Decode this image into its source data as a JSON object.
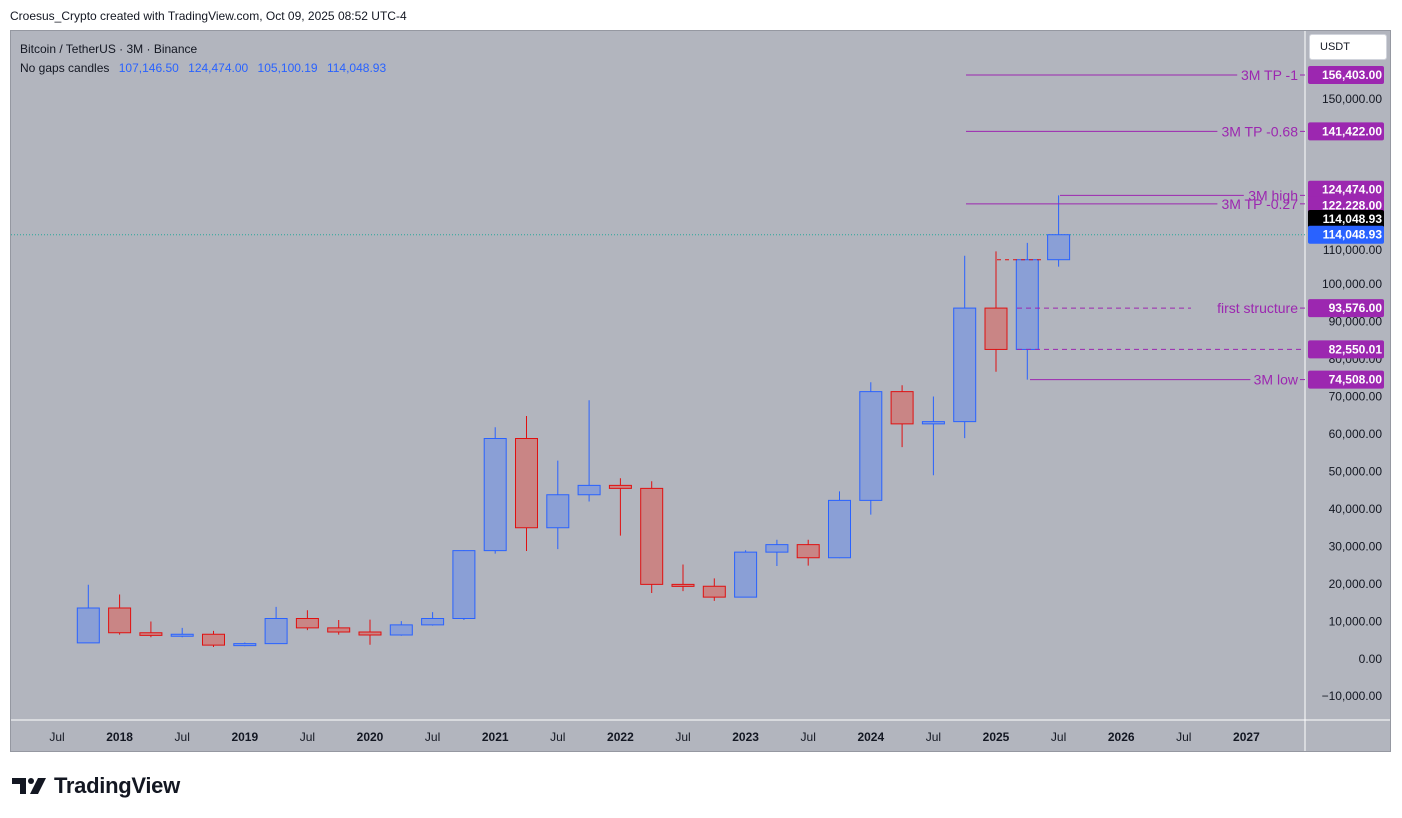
{
  "header": {
    "attribution": "Croesus_Crypto created with TradingView.com, Oct 09, 2025 08:52 UTC-4"
  },
  "legend": {
    "symbol_line": "Bitcoin / TetherUS · 3M · Binance",
    "mode": "No gaps candles",
    "open": "107,146.50",
    "high": "124,474.00",
    "low": "105,100.19",
    "close": "114,048.93"
  },
  "currency_button": "USDT",
  "brand": {
    "name": "TradingView"
  },
  "colors": {
    "up_fill": "#8a9fd6",
    "up_border": "#2962ff",
    "down_fill": "#c98585",
    "down_border": "#e01010",
    "level_line": "#9c27b0",
    "level_label_bg": "#9c27b0",
    "price_label_bg": "#2962ff",
    "pane_bg": "#b2b5be"
  },
  "chart_data": {
    "type": "candlestick",
    "title": "Bitcoin / TetherUS · 3M · Binance",
    "timeframe": "3M",
    "y_ticks": [
      -10000,
      0,
      10000,
      20000,
      30000,
      40000,
      50000,
      60000,
      70000,
      80000,
      90000,
      100000,
      110000,
      150000
    ],
    "y_tick_labels": [
      "−10,000.00",
      "0.00",
      "10,000.00",
      "20,000.00",
      "30,000.00",
      "40,000.00",
      "50,000.00",
      "60,000.00",
      "70,000.00",
      "80,000.00",
      "90,000.00",
      "100,000.00",
      "110,000.00",
      "150,000.00"
    ],
    "x_labels": [
      {
        "label": "Jul",
        "bold": false,
        "slot": 0
      },
      {
        "label": "2018",
        "bold": true,
        "slot": 2
      },
      {
        "label": "Jul",
        "bold": false,
        "slot": 4
      },
      {
        "label": "2019",
        "bold": true,
        "slot": 6
      },
      {
        "label": "Jul",
        "bold": false,
        "slot": 8
      },
      {
        "label": "2020",
        "bold": true,
        "slot": 10
      },
      {
        "label": "Jul",
        "bold": false,
        "slot": 12
      },
      {
        "label": "2021",
        "bold": true,
        "slot": 14
      },
      {
        "label": "Jul",
        "bold": false,
        "slot": 16
      },
      {
        "label": "2022",
        "bold": true,
        "slot": 18
      },
      {
        "label": "Jul",
        "bold": false,
        "slot": 20
      },
      {
        "label": "2023",
        "bold": true,
        "slot": 22
      },
      {
        "label": "Jul",
        "bold": false,
        "slot": 24
      },
      {
        "label": "2024",
        "bold": true,
        "slot": 26
      },
      {
        "label": "Jul",
        "bold": false,
        "slot": 28
      },
      {
        "label": "2025",
        "bold": true,
        "slot": 30
      },
      {
        "label": "Jul",
        "bold": false,
        "slot": 32
      },
      {
        "label": "2026",
        "bold": true,
        "slot": 34
      },
      {
        "label": "Jul",
        "bold": false,
        "slot": 36
      },
      {
        "label": "2027",
        "bold": true,
        "slot": 38
      }
    ],
    "candles": [
      {
        "period": "2017 Q3",
        "open": 4300,
        "high": 19800,
        "low": 4300,
        "close": 13600
      },
      {
        "period": "2017 Q4",
        "open": 13600,
        "high": 17200,
        "low": 6500,
        "close": 7000
      },
      {
        "period": "2018 Q1",
        "open": 7000,
        "high": 10000,
        "low": 5800,
        "close": 6300
      },
      {
        "period": "2018 Q2",
        "open": 6400,
        "high": 8300,
        "low": 5800,
        "close": 6600
      },
      {
        "period": "2018 Q3",
        "open": 6600,
        "high": 7500,
        "low": 3200,
        "close": 3700
      },
      {
        "period": "2018 Q4",
        "open": 3700,
        "high": 4400,
        "low": 3400,
        "close": 4100
      },
      {
        "period": "2019 Q1",
        "open": 4100,
        "high": 13900,
        "low": 4000,
        "close": 10800
      },
      {
        "period": "2019 Q2",
        "open": 10800,
        "high": 13000,
        "low": 7700,
        "close": 8300
      },
      {
        "period": "2019 Q3",
        "open": 8300,
        "high": 10400,
        "low": 6500,
        "close": 7200
      },
      {
        "period": "2019 Q4",
        "open": 7200,
        "high": 10500,
        "low": 3800,
        "close": 6400
      },
      {
        "period": "2020 Q1",
        "open": 6400,
        "high": 10100,
        "low": 6200,
        "close": 9100
      },
      {
        "period": "2020 Q2",
        "open": 9100,
        "high": 12500,
        "low": 8900,
        "close": 10800
      },
      {
        "period": "2020 Q3",
        "open": 10800,
        "high": 29000,
        "low": 10400,
        "close": 28900
      },
      {
        "period": "2020 Q4",
        "open": 28900,
        "high": 61800,
        "low": 28100,
        "close": 58800
      },
      {
        "period": "2021 Q1",
        "open": 58800,
        "high": 64800,
        "low": 28800,
        "close": 35000
      },
      {
        "period": "2021 Q2",
        "open": 35000,
        "high": 52900,
        "low": 29300,
        "close": 43800
      },
      {
        "period": "2021 Q3",
        "open": 43800,
        "high": 69000,
        "low": 42000,
        "close": 46300
      },
      {
        "period": "2021 Q4",
        "open": 46300,
        "high": 48200,
        "low": 32900,
        "close": 45500
      },
      {
        "period": "2022 Q1",
        "open": 45500,
        "high": 47400,
        "low": 17600,
        "close": 19900
      },
      {
        "period": "2022 Q2",
        "open": 19900,
        "high": 25200,
        "low": 18100,
        "close": 19400
      },
      {
        "period": "2022 Q3",
        "open": 19400,
        "high": 21500,
        "low": 15500,
        "close": 16500
      },
      {
        "period": "2022 Q4",
        "open": 16500,
        "high": 29000,
        "low": 16500,
        "close": 28500
      },
      {
        "period": "2023 Q1",
        "open": 28500,
        "high": 31800,
        "low": 24800,
        "close": 30500
      },
      {
        "period": "2023 Q2",
        "open": 30500,
        "high": 31800,
        "low": 24900,
        "close": 27000
      },
      {
        "period": "2023 Q3",
        "open": 27000,
        "high": 44700,
        "low": 26900,
        "close": 42300
      },
      {
        "period": "2023 Q4",
        "open": 42300,
        "high": 73800,
        "low": 38500,
        "close": 71300
      },
      {
        "period": "2024 Q1",
        "open": 71300,
        "high": 73000,
        "low": 56500,
        "close": 62700
      },
      {
        "period": "2024 Q2",
        "open": 62700,
        "high": 70000,
        "low": 49000,
        "close": 63300
      },
      {
        "period": "2024 Q3",
        "open": 63300,
        "high": 108300,
        "low": 58900,
        "close": 93576
      },
      {
        "period": "2024 Q4",
        "open": 93576,
        "high": 109600,
        "low": 76600,
        "close": 82550.01
      },
      {
        "period": "2025 Q1",
        "open": 82550.01,
        "high": 111900,
        "low": 74508,
        "close": 107146.5
      },
      {
        "period": "2025 Q2",
        "open": 107146.5,
        "high": 124474,
        "low": 105100.19,
        "close": 114048.93
      }
    ],
    "current_price": {
      "value": 114048.93,
      "label": "114,048.93"
    },
    "levels": [
      {
        "name": "3M TP -1",
        "value": 156403,
        "value_label": "156,403.00",
        "line": "solid",
        "text": "3M TP -1",
        "axis_label": "156,403.00"
      },
      {
        "name": "3M TP -0.68",
        "value": 141422,
        "value_label": "141,422.00",
        "line": "solid",
        "text": "3M TP -0.68",
        "axis_label": "141,422.00"
      },
      {
        "name": "3M high",
        "value": 124474,
        "value_label": "124,474.00",
        "line": "solid",
        "text": "3M high",
        "axis_label": "124,474.00"
      },
      {
        "name": "3M TP -0.27",
        "value": 122228,
        "value_label": "122,228.00",
        "line": "solid",
        "text": "3M TP -0.27",
        "axis_label": "122,228.00"
      },
      {
        "name": "first structure",
        "value": 93576,
        "value_label": "93,576.00",
        "line": "dashed",
        "text": "first structure",
        "axis_label": "93,576.00"
      },
      {
        "name": "82,550.01",
        "value": 82550.01,
        "value_label": "82,550.01",
        "line": "dashed",
        "text": "",
        "axis_label": "82,550.01"
      },
      {
        "name": "3M low",
        "value": 74508,
        "value_label": "74,508.00",
        "line": "solid",
        "text": "3M low",
        "axis_label": "74,508.00"
      }
    ],
    "last_close_label": "114,048.93"
  }
}
